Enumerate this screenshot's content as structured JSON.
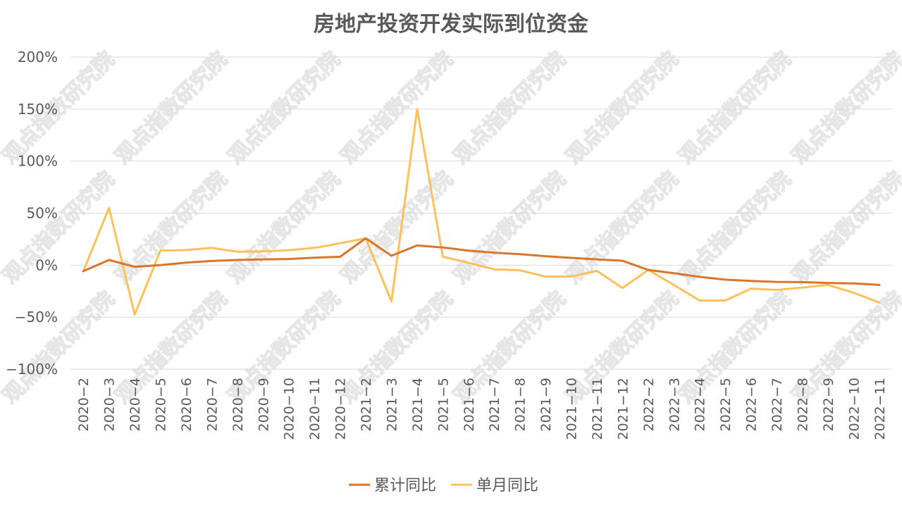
{
  "chart_data": {
    "type": "line",
    "title": "房地产投资开发实际到位资金",
    "watermark": "观点指数研究院",
    "x": [
      "2020-2",
      "2020-3",
      "2020-4",
      "2020-5",
      "2020-6",
      "2020-7",
      "2020-8",
      "2020-9",
      "2020-10",
      "2020-11",
      "2020-12",
      "2021-2",
      "2021-3",
      "2021-4",
      "2021-5",
      "2021-6",
      "2021-7",
      "2021-8",
      "2021-9",
      "2021-10",
      "2021-11",
      "2021-12",
      "2022-2",
      "2022-3",
      "2022-4",
      "2022-5",
      "2022-6",
      "2022-7",
      "2022-8",
      "2022-9",
      "2022-10",
      "2022-11"
    ],
    "x_tick_labels": [
      "2020−2",
      "2020−3",
      "2020−4",
      "2020−5",
      "2020−6",
      "2020−7",
      "2020−8",
      "2020−9",
      "2020−10",
      "2020−11",
      "2020−12",
      "2021−2",
      "2021−3",
      "2021−4",
      "2021−5",
      "2021−6",
      "2021−7",
      "2021−8",
      "2021−9",
      "2021−10",
      "2021−11",
      "2021−12",
      "2022−2",
      "2022−3",
      "2022−4",
      "2022−5",
      "2022−6",
      "2022−7",
      "2022−8",
      "2022−9",
      "2022−10",
      "2022−11"
    ],
    "y_tick_labels": [
      "200%",
      "150%",
      "100%",
      "50%",
      "0%",
      "−50%",
      "−100%"
    ],
    "y_ticks": [
      200,
      150,
      100,
      50,
      0,
      -50,
      -100
    ],
    "ylim": [
      -100,
      200
    ],
    "y_unit": "%",
    "grid": true,
    "legend_position": "bottom",
    "series": [
      {
        "name": "累计同比",
        "color": "#D9762B",
        "values": [
          -5.7,
          5.0,
          -1.6,
          0.0,
          2.4,
          4.0,
          5.0,
          5.6,
          5.9,
          7.2,
          8.1,
          25.8,
          9.0,
          18.9,
          17.0,
          14.0,
          12.0,
          10.6,
          8.6,
          7.0,
          5.6,
          4.2,
          -4.6,
          -7.7,
          -11.2,
          -13.9,
          -15.2,
          -16.1,
          -16.3,
          -17.1,
          -17.6,
          -19.0
        ]
      },
      {
        "name": "单月同比",
        "color": "#FFC05C",
        "values": [
          -5.7,
          55.0,
          -47.5,
          14.0,
          14.5,
          16.6,
          12.9,
          13.2,
          14.4,
          16.6,
          21.0,
          25.8,
          -35.0,
          150.0,
          8.1,
          2.3,
          -4.0,
          -4.9,
          -11.0,
          -10.9,
          -5.5,
          -22.0,
          -4.6,
          -19.0,
          -34.0,
          -34.0,
          -22.6,
          -23.8,
          -21.5,
          -19.0,
          -26.5,
          -36.0
        ]
      }
    ]
  }
}
